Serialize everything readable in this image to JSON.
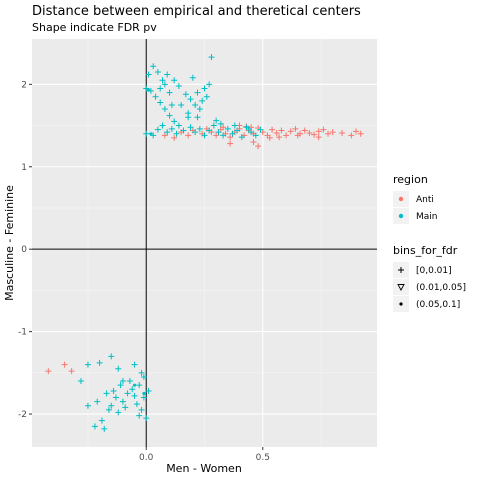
{
  "chart_data": {
    "type": "scatter",
    "title": "Distance between empirical and theretical centers",
    "subtitle": "Shape indicate FDR pv",
    "xlabel": "Men - Women",
    "ylabel": "Masculine - Feminine",
    "xlim": [
      -0.49,
      0.99
    ],
    "ylim": [
      -2.4,
      2.55
    ],
    "x_ticks": [
      {
        "value": 0.0,
        "label": "0.0"
      },
      {
        "value": 0.5,
        "label": "0.5"
      }
    ],
    "y_ticks": [
      {
        "value": -2,
        "label": "-2"
      },
      {
        "value": -1,
        "label": "-1"
      },
      {
        "value": 0,
        "label": "0"
      },
      {
        "value": 1,
        "label": "1"
      },
      {
        "value": 2,
        "label": "2"
      }
    ],
    "grid": true,
    "reference_lines": {
      "x": 0,
      "y": 0
    },
    "legend_placement": "right",
    "colors": {
      "Anti": "#F8766D",
      "Main": "#00BFC4",
      "panel": "#EBEBEB",
      "grid": "#ffffff"
    },
    "legends": [
      {
        "title": "region",
        "entries": [
          {
            "label": "Anti",
            "shape": "dot",
            "color": "#F8766D"
          },
          {
            "label": "Main",
            "shape": "dot",
            "color": "#00BFC4"
          }
        ]
      },
      {
        "title": "bins_for_fdr",
        "entries": [
          {
            "label": "[0,0.01]",
            "shape": "plus"
          },
          {
            "label": "(0.01,0.05]",
            "shape": "triangle-down"
          },
          {
            "label": "(0.05,0.1]",
            "shape": "dot"
          }
        ]
      }
    ],
    "series": [
      {
        "name": "Anti",
        "color": "#F8766D",
        "shape": "plus",
        "points": [
          [
            -0.42,
            -1.48
          ],
          [
            -0.35,
            -1.4
          ],
          [
            -0.32,
            -1.48
          ],
          [
            0.08,
            1.38
          ],
          [
            0.12,
            1.35
          ],
          [
            0.15,
            1.42
          ],
          [
            0.18,
            1.38
          ],
          [
            0.2,
            1.44
          ],
          [
            0.24,
            1.4
          ],
          [
            0.26,
            1.46
          ],
          [
            0.28,
            1.42
          ],
          [
            0.3,
            1.38
          ],
          [
            0.32,
            1.45
          ],
          [
            0.34,
            1.4
          ],
          [
            0.36,
            1.36
          ],
          [
            0.38,
            1.42
          ],
          [
            0.4,
            1.46
          ],
          [
            0.42,
            1.38
          ],
          [
            0.44,
            1.44
          ],
          [
            0.46,
            1.4
          ],
          [
            0.48,
            1.47
          ],
          [
            0.5,
            1.42
          ],
          [
            0.52,
            1.38
          ],
          [
            0.54,
            1.45
          ],
          [
            0.56,
            1.41
          ],
          [
            0.58,
            1.44
          ],
          [
            0.6,
            1.38
          ],
          [
            0.62,
            1.43
          ],
          [
            0.64,
            1.46
          ],
          [
            0.66,
            1.4
          ],
          [
            0.68,
            1.44
          ],
          [
            0.7,
            1.41
          ],
          [
            0.72,
            1.39
          ],
          [
            0.74,
            1.43
          ],
          [
            0.76,
            1.45
          ],
          [
            0.78,
            1.4
          ],
          [
            0.8,
            1.42
          ],
          [
            0.84,
            1.41
          ],
          [
            0.88,
            1.38
          ],
          [
            0.9,
            1.43
          ],
          [
            0.92,
            1.4
          ],
          [
            0.36,
            1.28
          ],
          [
            0.46,
            1.3
          ],
          [
            0.53,
            1.35
          ],
          [
            0.48,
            1.25
          ],
          [
            0.33,
            1.48
          ],
          [
            0.43,
            1.49
          ],
          [
            0.57,
            1.36
          ],
          [
            0.65,
            1.38
          ],
          [
            0.74,
            1.36
          ],
          [
            0.4,
            1.5
          ],
          [
            0.45,
            1.48
          ]
        ]
      },
      {
        "name": "Main",
        "color": "#00BFC4",
        "shape": "plus",
        "points": [
          [
            0.01,
            2.12
          ],
          [
            0.03,
            2.22
          ],
          [
            0.05,
            2.15
          ],
          [
            0.08,
            2.0
          ],
          [
            0.1,
            1.9
          ],
          [
            0.12,
            2.05
          ],
          [
            0.02,
            1.92
          ],
          [
            0.04,
            1.85
          ],
          [
            0.06,
            1.78
          ],
          [
            0.08,
            1.7
          ],
          [
            0.1,
            1.62
          ],
          [
            0.12,
            1.55
          ],
          [
            0.14,
            1.5
          ],
          [
            0.17,
            1.88
          ],
          [
            0.19,
            1.82
          ],
          [
            0.21,
            1.75
          ],
          [
            0.23,
            1.7
          ],
          [
            0.25,
            1.95
          ],
          [
            0.27,
            2.0
          ],
          [
            0.26,
            1.85
          ],
          [
            0.24,
            1.8
          ],
          [
            0.2,
            2.08
          ],
          [
            0.28,
            2.33
          ],
          [
            0.22,
            1.6
          ],
          [
            0.18,
            1.65
          ],
          [
            0.15,
            1.75
          ],
          [
            0.0,
            1.4
          ],
          [
            0.03,
            1.38
          ],
          [
            0.05,
            1.45
          ],
          [
            0.07,
            1.5
          ],
          [
            0.09,
            1.42
          ],
          [
            0.11,
            1.46
          ],
          [
            0.13,
            1.4
          ],
          [
            0.16,
            1.44
          ],
          [
            0.19,
            1.48
          ],
          [
            0.21,
            1.42
          ],
          [
            0.23,
            1.46
          ],
          [
            0.25,
            1.38
          ],
          [
            0.27,
            1.44
          ],
          [
            0.29,
            1.5
          ],
          [
            0.31,
            1.42
          ],
          [
            0.33,
            1.38
          ],
          [
            0.35,
            1.46
          ],
          [
            0.37,
            1.4
          ],
          [
            0.39,
            1.44
          ],
          [
            0.41,
            1.36
          ],
          [
            0.43,
            1.48
          ],
          [
            0.45,
            1.42
          ],
          [
            0.47,
            1.38
          ],
          [
            0.49,
            1.45
          ],
          [
            0.3,
            1.56
          ],
          [
            0.32,
            1.52
          ],
          [
            0.38,
            1.5
          ],
          [
            0.44,
            1.46
          ],
          [
            0.06,
            1.95
          ],
          [
            0.09,
            2.12
          ],
          [
            0.14,
            1.98
          ],
          [
            0.07,
            2.05
          ],
          [
            0.11,
            1.75
          ],
          [
            0.18,
            1.6
          ],
          [
            0.22,
            1.9
          ],
          [
            0.0,
            1.95
          ],
          [
            -0.25,
            -1.4
          ],
          [
            -0.2,
            -1.38
          ],
          [
            -0.28,
            -1.6
          ],
          [
            -0.15,
            -1.3
          ],
          [
            -0.12,
            -1.45
          ],
          [
            -0.1,
            -1.6
          ],
          [
            -0.05,
            -1.4
          ],
          [
            -0.02,
            -1.5
          ],
          [
            -0.25,
            -1.9
          ],
          [
            -0.22,
            -2.15
          ],
          [
            -0.18,
            -2.18
          ],
          [
            -0.15,
            -1.9
          ],
          [
            -0.12,
            -1.98
          ],
          [
            -0.1,
            -1.85
          ],
          [
            -0.08,
            -1.75
          ],
          [
            -0.06,
            -1.7
          ],
          [
            -0.04,
            -1.88
          ],
          [
            -0.02,
            -1.95
          ],
          [
            0.0,
            -2.05
          ],
          [
            -0.01,
            -1.8
          ],
          [
            0.01,
            -1.72
          ],
          [
            -0.03,
            -2.02
          ],
          [
            -0.17,
            -1.75
          ],
          [
            -0.14,
            -1.72
          ],
          [
            -0.13,
            -1.8
          ],
          [
            -0.11,
            -1.65
          ],
          [
            -0.09,
            -1.92
          ],
          [
            -0.07,
            -1.6
          ],
          [
            -0.05,
            -1.78
          ],
          [
            -0.03,
            -1.65
          ],
          [
            -0.19,
            -2.08
          ],
          [
            -0.16,
            -1.95
          ],
          [
            -0.21,
            -1.85
          ],
          [
            -0.01,
            -1.55
          ]
        ]
      },
      {
        "name": "Main",
        "color": "#00BFC4",
        "shape": "dot",
        "points": [
          [
            0.01,
            1.93
          ],
          [
            0.02,
            1.4
          ],
          [
            -0.01,
            -1.75
          ],
          [
            -0.05,
            -1.65
          ]
        ]
      }
    ]
  }
}
